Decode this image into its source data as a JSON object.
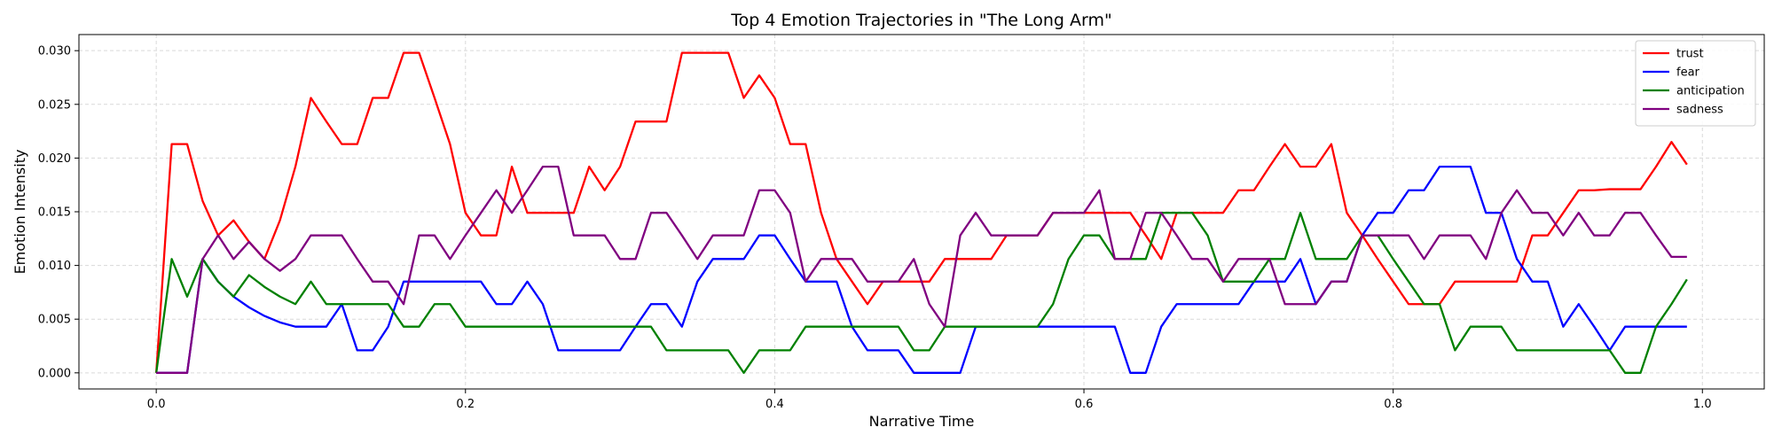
{
  "chart_data": {
    "type": "line",
    "title": "Top 4 Emotion Trajectories in \"The Long Arm\"",
    "xlabel": "Narrative Time",
    "ylabel": "Emotion Intensity",
    "xlim": [
      -0.05,
      1.04
    ],
    "ylim": [
      -0.0015,
      0.0315
    ],
    "xticks": [
      0.0,
      0.2,
      0.4,
      0.6,
      0.8,
      1.0
    ],
    "xtick_labels": [
      "0.0",
      "0.2",
      "0.4",
      "0.6",
      "0.8",
      "1.0"
    ],
    "yticks": [
      0.0,
      0.005,
      0.01,
      0.015,
      0.02,
      0.025,
      0.03
    ],
    "ytick_labels": [
      "0.000",
      "0.005",
      "0.010",
      "0.015",
      "0.020",
      "0.025",
      "0.030"
    ],
    "grid": true,
    "legend_position": "top-right",
    "x": [
      0.0,
      0.01,
      0.02,
      0.03,
      0.04,
      0.05,
      0.06,
      0.07,
      0.08,
      0.09,
      0.1,
      0.11,
      0.12,
      0.13,
      0.14,
      0.15,
      0.16,
      0.17,
      0.18,
      0.19,
      0.2,
      0.21,
      0.22,
      0.23,
      0.24,
      0.25,
      0.26,
      0.27,
      0.28,
      0.29,
      0.3,
      0.31,
      0.32,
      0.33,
      0.34,
      0.35,
      0.36,
      0.37,
      0.38,
      0.39,
      0.4,
      0.41,
      0.42,
      0.43,
      0.44,
      0.45,
      0.46,
      0.47,
      0.48,
      0.49,
      0.5,
      0.51,
      0.52,
      0.53,
      0.54,
      0.55,
      0.56,
      0.57,
      0.58,
      0.59,
      0.6,
      0.61,
      0.62,
      0.63,
      0.64,
      0.65,
      0.66,
      0.67,
      0.68,
      0.69,
      0.7,
      0.71,
      0.72,
      0.73,
      0.74,
      0.75,
      0.76,
      0.77,
      0.78,
      0.79,
      0.8,
      0.81,
      0.82,
      0.83,
      0.84,
      0.85,
      0.86,
      0.87,
      0.88,
      0.89,
      0.9,
      0.91,
      0.92,
      0.93,
      0.94,
      0.95,
      0.96,
      0.97,
      0.98,
      0.99
    ],
    "series": [
      {
        "name": "trust",
        "color": "#ff0000",
        "values": [
          0.0,
          0.0213,
          0.0213,
          0.016,
          0.0128,
          0.0142,
          0.0122,
          0.0106,
          0.0142,
          0.0192,
          0.0256,
          0.0234,
          0.0213,
          0.0213,
          0.0256,
          0.0256,
          0.0298,
          0.0298,
          0.0256,
          0.0213,
          0.0149,
          0.0128,
          0.0128,
          0.0192,
          0.0149,
          0.0149,
          0.0149,
          0.0149,
          0.0192,
          0.017,
          0.0192,
          0.0234,
          0.0234,
          0.0234,
          0.0298,
          0.0298,
          0.0298,
          0.0298,
          0.0256,
          0.0277,
          0.0256,
          0.0213,
          0.0213,
          0.0149,
          0.0106,
          0.0085,
          0.0064,
          0.0085,
          0.0085,
          0.0085,
          0.0085,
          0.0106,
          0.0106,
          0.0106,
          0.0106,
          0.0128,
          0.0128,
          0.0128,
          0.0149,
          0.0149,
          0.0149,
          0.0149,
          0.0149,
          0.0149,
          0.0128,
          0.0106,
          0.0149,
          0.0149,
          0.0149,
          0.0149,
          0.017,
          0.017,
          0.0192,
          0.0213,
          0.0192,
          0.0192,
          0.0213,
          0.0149,
          0.0128,
          0.0106,
          0.0085,
          0.0064,
          0.0064,
          0.0064,
          0.0085,
          0.0085,
          0.0085,
          0.0085,
          0.0085,
          0.0128,
          0.0128,
          0.0149,
          0.017,
          0.017,
          0.0171,
          0.0171,
          0.0171,
          0.0192,
          0.0215,
          0.0194
        ]
      },
      {
        "name": "fear",
        "color": "#0000ff",
        "values": [
          0.0,
          0.0,
          0.0,
          0.0106,
          0.0085,
          0.0071,
          0.0061,
          0.0053,
          0.0047,
          0.0043,
          0.0043,
          0.0043,
          0.0064,
          0.0021,
          0.0021,
          0.0043,
          0.0085,
          0.0085,
          0.0085,
          0.0085,
          0.0085,
          0.0085,
          0.0064,
          0.0064,
          0.0085,
          0.0064,
          0.0021,
          0.0021,
          0.0021,
          0.0021,
          0.0021,
          0.0043,
          0.0064,
          0.0064,
          0.0043,
          0.0085,
          0.0106,
          0.0106,
          0.0106,
          0.0128,
          0.0128,
          0.0106,
          0.0085,
          0.0085,
          0.0085,
          0.0043,
          0.0021,
          0.0021,
          0.0021,
          0.0,
          0.0,
          0.0,
          0.0,
          0.0043,
          0.0043,
          0.0043,
          0.0043,
          0.0043,
          0.0043,
          0.0043,
          0.0043,
          0.0043,
          0.0043,
          0.0,
          0.0,
          0.0043,
          0.0064,
          0.0064,
          0.0064,
          0.0064,
          0.0064,
          0.0085,
          0.0085,
          0.0085,
          0.0106,
          0.0064,
          0.0085,
          0.0085,
          0.0128,
          0.0149,
          0.0149,
          0.017,
          0.017,
          0.0192,
          0.0192,
          0.0192,
          0.0149,
          0.0149,
          0.0106,
          0.0085,
          0.0085,
          0.0043,
          0.0064,
          0.0043,
          0.0021,
          0.0043,
          0.0043,
          0.0043,
          0.0043,
          0.0043
        ]
      },
      {
        "name": "anticipation",
        "color": "#008000",
        "values": [
          0.0,
          0.0106,
          0.0071,
          0.0106,
          0.0085,
          0.0071,
          0.0091,
          0.008,
          0.0071,
          0.0064,
          0.0085,
          0.0064,
          0.0064,
          0.0064,
          0.0064,
          0.0064,
          0.0043,
          0.0043,
          0.0064,
          0.0064,
          0.0043,
          0.0043,
          0.0043,
          0.0043,
          0.0043,
          0.0043,
          0.0043,
          0.0043,
          0.0043,
          0.0043,
          0.0043,
          0.0043,
          0.0043,
          0.0021,
          0.0021,
          0.0021,
          0.0021,
          0.0021,
          0.0,
          0.0021,
          0.0021,
          0.0021,
          0.0043,
          0.0043,
          0.0043,
          0.0043,
          0.0043,
          0.0043,
          0.0043,
          0.0021,
          0.0021,
          0.0043,
          0.0043,
          0.0043,
          0.0043,
          0.0043,
          0.0043,
          0.0043,
          0.0064,
          0.0106,
          0.0128,
          0.0128,
          0.0106,
          0.0106,
          0.0106,
          0.0149,
          0.0149,
          0.0149,
          0.0128,
          0.0085,
          0.0085,
          0.0085,
          0.0106,
          0.0106,
          0.0149,
          0.0106,
          0.0106,
          0.0106,
          0.0128,
          0.0128,
          0.0106,
          0.0085,
          0.0064,
          0.0064,
          0.0021,
          0.0043,
          0.0043,
          0.0043,
          0.0021,
          0.0021,
          0.0021,
          0.0021,
          0.0021,
          0.0021,
          0.0021,
          0.0,
          0.0,
          0.0043,
          0.0064,
          0.0087
        ]
      },
      {
        "name": "sadness",
        "color": "#800080",
        "values": [
          0.0,
          0.0,
          0.0,
          0.0106,
          0.0128,
          0.0106,
          0.0122,
          0.0106,
          0.0095,
          0.0106,
          0.0128,
          0.0128,
          0.0128,
          0.0106,
          0.0085,
          0.0085,
          0.0064,
          0.0128,
          0.0128,
          0.0106,
          0.0128,
          0.0149,
          0.017,
          0.0149,
          0.017,
          0.0192,
          0.0192,
          0.0128,
          0.0128,
          0.0128,
          0.0106,
          0.0106,
          0.0149,
          0.0149,
          0.0128,
          0.0106,
          0.0128,
          0.0128,
          0.0128,
          0.017,
          0.017,
          0.0149,
          0.0085,
          0.0106,
          0.0106,
          0.0106,
          0.0085,
          0.0085,
          0.0085,
          0.0106,
          0.0064,
          0.0043,
          0.0128,
          0.0149,
          0.0128,
          0.0128,
          0.0128,
          0.0128,
          0.0149,
          0.0149,
          0.0149,
          0.017,
          0.0106,
          0.0106,
          0.0149,
          0.0149,
          0.0128,
          0.0106,
          0.0106,
          0.0085,
          0.0106,
          0.0106,
          0.0106,
          0.0064,
          0.0064,
          0.0064,
          0.0085,
          0.0085,
          0.0128,
          0.0128,
          0.0128,
          0.0128,
          0.0106,
          0.0128,
          0.0128,
          0.0128,
          0.0106,
          0.0149,
          0.017,
          0.0149,
          0.0149,
          0.0128,
          0.0149,
          0.0128,
          0.0128,
          0.0149,
          0.0149,
          0.0128,
          0.0108,
          0.0108
        ]
      }
    ]
  }
}
